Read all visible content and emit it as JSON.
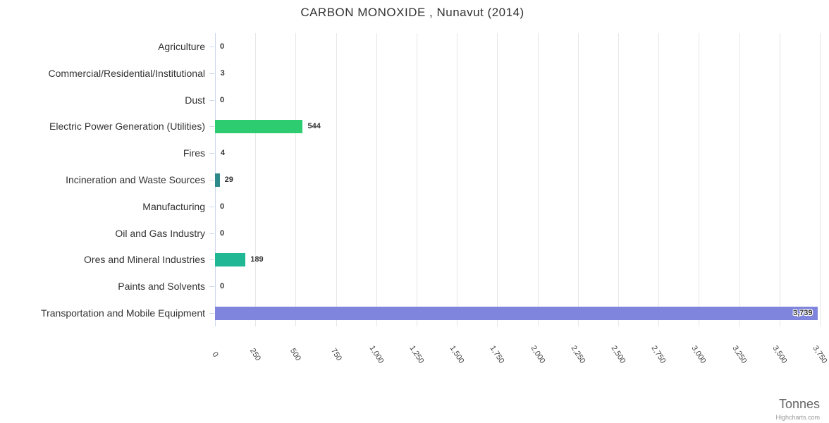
{
  "chart_data": {
    "type": "bar",
    "orientation": "horizontal",
    "title": "CARBON MONOXIDE , Nunavut (2014)",
    "categories": [
      "Agriculture",
      "Commercial/Residential/Institutional",
      "Dust",
      "Electric Power Generation (Utilities)",
      "Fires",
      "Incineration and Waste Sources",
      "Manufacturing",
      "Oil and Gas Industry",
      "Ores and Mineral Industries",
      "Paints and Solvents",
      "Transportation and Mobile Equipment"
    ],
    "values": [
      0,
      3,
      0,
      544,
      4,
      29,
      0,
      0,
      189,
      0,
      3739
    ],
    "value_labels": [
      "0",
      "3",
      "0",
      "544",
      "4",
      "29",
      "0",
      "0",
      "189",
      "0",
      "3,739"
    ],
    "bar_colors": [
      null,
      null,
      null,
      "#2ecc71",
      null,
      "#2d8a8c",
      null,
      null,
      "#1fb794",
      null,
      "#7f85dc"
    ],
    "xlim": [
      0,
      3750
    ],
    "tick_interval": 250,
    "tick_labels": [
      "0",
      "250",
      "500",
      "750",
      "1,000",
      "1,250",
      "1,500",
      "1,750",
      "2,000",
      "2,250",
      "2,500",
      "2,750",
      "3,000",
      "3,250",
      "3,500",
      "3,750"
    ],
    "xlabel": "Tonnes",
    "ylabel": "",
    "grid": true,
    "legend": false,
    "credit": "Highcharts.com",
    "colors": {
      "grid": "#e6e6e6",
      "axis_line": "#ccd6eb",
      "tick": "#ccd6eb",
      "title_text": "#333333",
      "category_text": "#333333",
      "value_text": "#333333",
      "axis_title_text": "#666666",
      "credit_text": "#999999"
    }
  }
}
